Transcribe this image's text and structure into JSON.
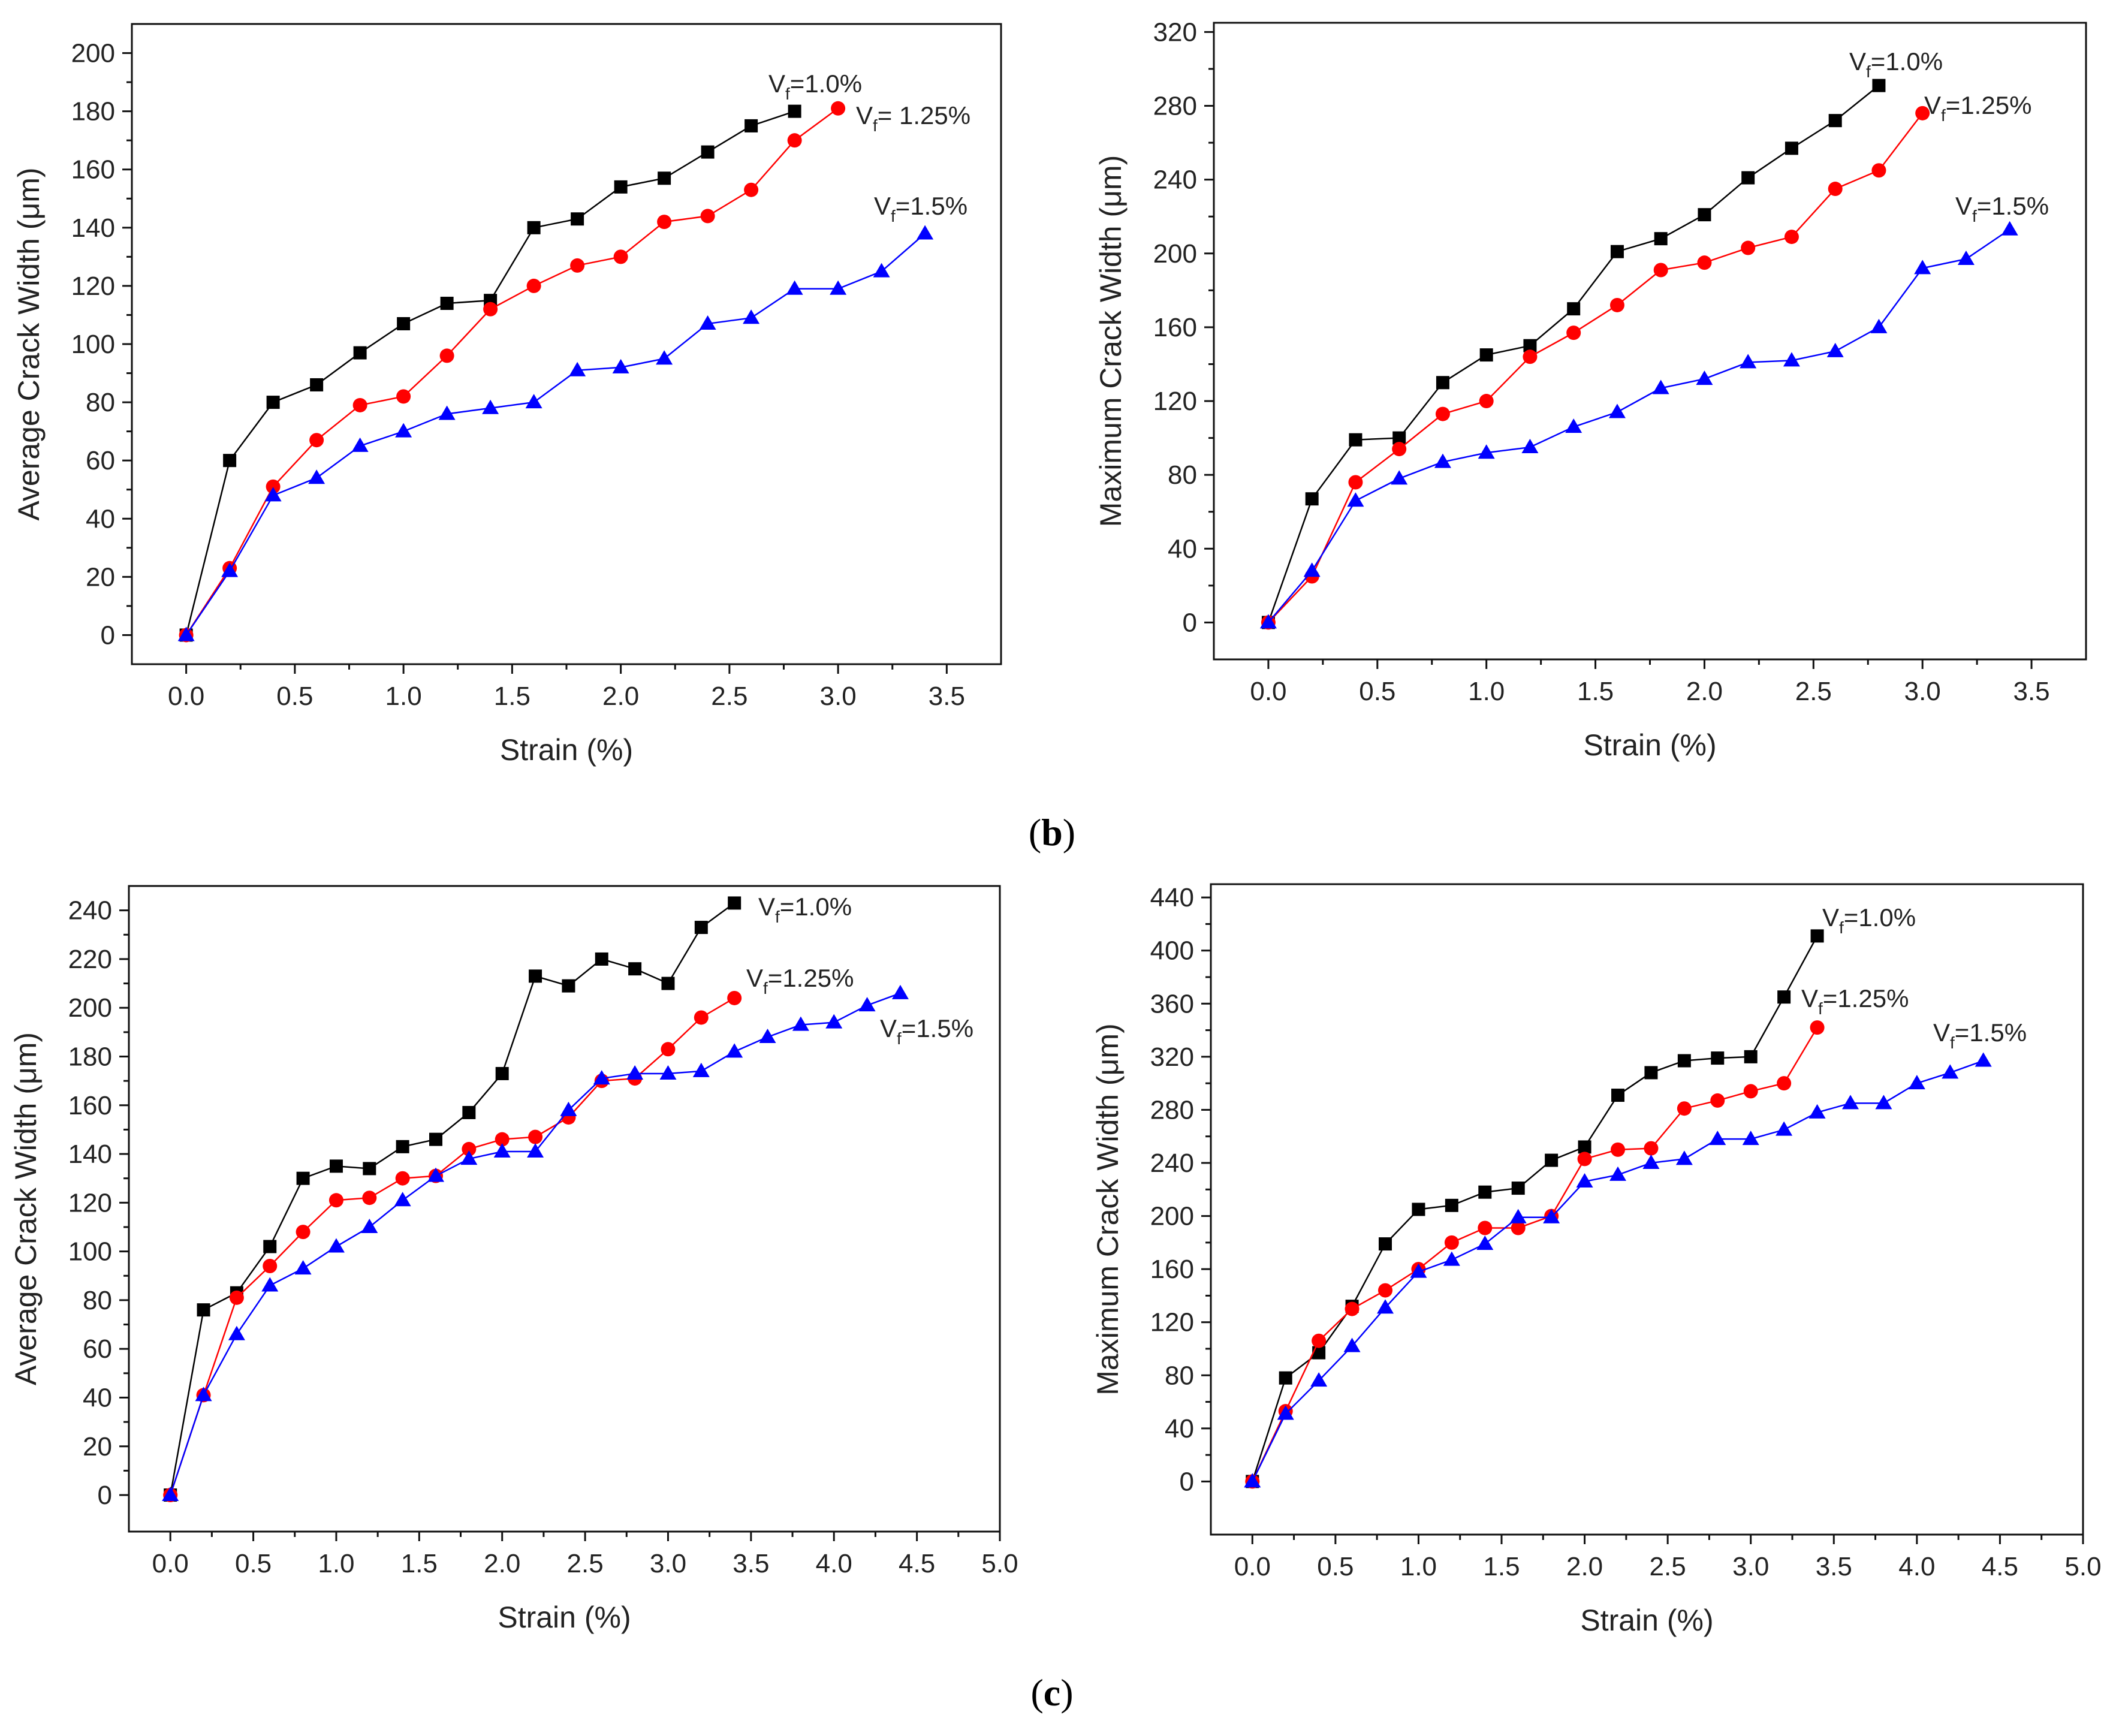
{
  "colors": {
    "black": "#000000",
    "red": "#ff0000",
    "blue": "#0000ff",
    "axis": "#111111"
  },
  "captions": {
    "b_open": "(",
    "b_letter": "b",
    "b_close": ")",
    "c_open": "(",
    "c_letter": "c",
    "c_close": ")"
  },
  "chart_data": [
    {
      "id": "b-left",
      "type": "line",
      "xlabel": "Strain (%)",
      "ylabel": "Average Crack Width (μm​)",
      "xlim": [
        -0.25,
        3.75
      ],
      "ylim": [
        -10,
        210
      ],
      "xticks": [
        0.0,
        0.5,
        1.0,
        1.5,
        2.0,
        2.5,
        3.0,
        3.5
      ],
      "xtick_labels": [
        "0.0",
        "0.5",
        "1.0",
        "1.5",
        "2.0",
        "2.5",
        "3.0",
        "3.5"
      ],
      "yticks": [
        0,
        20,
        40,
        60,
        80,
        100,
        120,
        140,
        160,
        180,
        200
      ],
      "ytick_labels": [
        "0",
        "20",
        "40",
        "60",
        "80",
        "100",
        "120",
        "140",
        "160",
        "180",
        "200"
      ],
      "series": [
        {
          "name": "Vf=1.0%",
          "label_main": "V",
          "label_sub": "f",
          "label_rest": "=1.0%",
          "color": "#000000",
          "marker": "square",
          "x": [
            0,
            0.2,
            0.4,
            0.6,
            0.8,
            1.0,
            1.2,
            1.4,
            1.6,
            1.8,
            2.0,
            2.2,
            2.4,
            2.6,
            2.8
          ],
          "y": [
            0,
            60,
            80,
            86,
            97,
            107,
            114,
            115,
            140,
            143,
            154,
            157,
            166,
            175,
            180
          ]
        },
        {
          "name": "Vf= 1.25%",
          "label_main": "V",
          "label_sub": "f",
          "label_rest": "= 1.25%",
          "color": "#ff0000",
          "marker": "circle",
          "x": [
            0,
            0.2,
            0.4,
            0.6,
            0.8,
            1.0,
            1.2,
            1.4,
            1.6,
            1.8,
            2.0,
            2.2,
            2.4,
            2.6,
            2.8,
            3.0
          ],
          "y": [
            0,
            23,
            51,
            67,
            79,
            82,
            96,
            112,
            120,
            127,
            130,
            142,
            144,
            153,
            170,
            181
          ]
        },
        {
          "name": "Vf=1.5%",
          "label_main": "V",
          "label_sub": "f",
          "label_rest": "=1.5%",
          "color": "#0000ff",
          "marker": "triangle",
          "x": [
            0,
            0.2,
            0.4,
            0.6,
            0.8,
            1.0,
            1.2,
            1.4,
            1.6,
            1.8,
            2.0,
            2.2,
            2.4,
            2.6,
            2.8,
            3.0,
            3.2,
            3.4
          ],
          "y": [
            0,
            22,
            48,
            54,
            65,
            70,
            76,
            78,
            80,
            91,
            92,
            95,
            107,
            109,
            119,
            119,
            125,
            138
          ]
        }
      ]
    },
    {
      "id": "b-right",
      "type": "line",
      "xlabel": "Strain (%)",
      "ylabel": "Maximum Crack Width (μm​)",
      "xlim": [
        -0.25,
        3.75
      ],
      "ylim": [
        -20,
        325
      ],
      "xticks": [
        0.0,
        0.5,
        1.0,
        1.5,
        2.0,
        2.5,
        3.0,
        3.5
      ],
      "xtick_labels": [
        "0.0",
        "0.5",
        "1.0",
        "1.5",
        "2.0",
        "2.5",
        "3.0",
        "3.5"
      ],
      "yticks": [
        0,
        40,
        80,
        120,
        160,
        200,
        240,
        280,
        320
      ],
      "ytick_labels": [
        "0",
        "40",
        "80",
        "120",
        "160",
        "200",
        "240",
        "280",
        "320"
      ],
      "series": [
        {
          "name": "Vf=1.0%",
          "label_main": "V",
          "label_sub": "f",
          "label_rest": "=1.0%",
          "color": "#000000",
          "marker": "square",
          "x": [
            0,
            0.2,
            0.4,
            0.6,
            0.8,
            1.0,
            1.2,
            1.4,
            1.6,
            1.8,
            2.0,
            2.2,
            2.4,
            2.6,
            2.8
          ],
          "y": [
            0,
            67,
            99,
            100,
            130,
            145,
            150,
            170,
            201,
            208,
            221,
            241,
            257,
            272,
            291
          ]
        },
        {
          "name": "Vf=1.25%",
          "label_main": "V",
          "label_sub": "f",
          "label_rest": "=1.25%",
          "color": "#ff0000",
          "marker": "circle",
          "x": [
            0,
            0.2,
            0.4,
            0.6,
            0.8,
            1.0,
            1.2,
            1.4,
            1.6,
            1.8,
            2.0,
            2.2,
            2.4,
            2.6,
            2.8,
            3.0
          ],
          "y": [
            0,
            25,
            76,
            94,
            113,
            120,
            144,
            157,
            172,
            191,
            195,
            203,
            209,
            235,
            245,
            276
          ]
        },
        {
          "name": "Vf=1.5%",
          "label_main": "V",
          "label_sub": "f",
          "label_rest": "=1.5%",
          "color": "#0000ff",
          "marker": "triangle",
          "x": [
            0,
            0.2,
            0.4,
            0.6,
            0.8,
            1.0,
            1.2,
            1.4,
            1.6,
            1.8,
            2.0,
            2.2,
            2.4,
            2.6,
            2.8,
            3.0,
            3.2,
            3.4
          ],
          "y": [
            0,
            28,
            66,
            78,
            87,
            92,
            95,
            106,
            114,
            127,
            132,
            141,
            142,
            147,
            160,
            192,
            197,
            213
          ]
        }
      ]
    },
    {
      "id": "c-left",
      "type": "line",
      "xlabel": "Strain (%)",
      "ylabel": "Average Crack Width (μm​)",
      "xlim": [
        -0.25,
        5.0
      ],
      "ylim": [
        -15,
        250
      ],
      "xticks": [
        0.0,
        0.5,
        1.0,
        1.5,
        2.0,
        2.5,
        3.0,
        3.5,
        4.0,
        4.5,
        5.0
      ],
      "xtick_labels": [
        "0.0",
        "0.5",
        "1.0",
        "1.5",
        "2.0",
        "2.5",
        "3.0",
        "3.5",
        "4.0",
        "4.5",
        "5.0"
      ],
      "yticks": [
        0,
        20,
        40,
        60,
        80,
        100,
        120,
        140,
        160,
        180,
        200,
        220,
        240
      ],
      "ytick_labels": [
        "0",
        "20",
        "40",
        "60",
        "80",
        "100",
        "120",
        "140",
        "160",
        "180",
        "200",
        "220",
        "240"
      ],
      "series": [
        {
          "name": "Vf=1.0%",
          "label_main": "V",
          "label_sub": "f",
          "label_rest": "=1.0%",
          "color": "#000000",
          "marker": "square",
          "x": [
            0,
            0.2,
            0.4,
            0.6,
            0.8,
            1.0,
            1.2,
            1.4,
            1.6,
            1.8,
            2.0,
            2.2,
            2.4,
            2.6,
            2.8,
            3.0,
            3.2,
            3.4
          ],
          "y": [
            0,
            76,
            83,
            102,
            130,
            135,
            134,
            143,
            146,
            157,
            173,
            213,
            209,
            220,
            216,
            210,
            233,
            243
          ]
        },
        {
          "name": "Vf=1.25%",
          "label_main": "V",
          "label_sub": "f",
          "label_rest": "=1.25%",
          "color": "#ff0000",
          "marker": "circle",
          "x": [
            0,
            0.2,
            0.4,
            0.6,
            0.8,
            1.0,
            1.2,
            1.4,
            1.6,
            1.8,
            2.0,
            2.2,
            2.4,
            2.6,
            2.8,
            3.0,
            3.2,
            3.4
          ],
          "y": [
            0,
            41,
            81,
            94,
            108,
            121,
            122,
            130,
            131,
            142,
            146,
            147,
            155,
            170,
            171,
            183,
            196,
            204
          ]
        },
        {
          "name": "Vf=1.5%",
          "label_main": "V",
          "label_sub": "f",
          "label_rest": "=1.5%",
          "color": "#0000ff",
          "marker": "triangle",
          "x": [
            0,
            0.2,
            0.4,
            0.6,
            0.8,
            1.0,
            1.2,
            1.4,
            1.6,
            1.8,
            2.0,
            2.2,
            2.4,
            2.6,
            2.8,
            3.0,
            3.2,
            3.4,
            3.6,
            3.8,
            4.0,
            4.2,
            4.4
          ],
          "y": [
            0,
            41,
            66,
            86,
            93,
            102,
            110,
            121,
            131,
            138,
            141,
            141,
            158,
            171,
            173,
            173,
            174,
            182,
            188,
            193,
            194,
            201,
            206
          ]
        }
      ]
    },
    {
      "id": "c-right",
      "type": "line",
      "xlabel": "Strain (%)",
      "ylabel": "Maximum Crack Width (μm​)",
      "xlim": [
        -0.25,
        5.0
      ],
      "ylim": [
        -40,
        450
      ],
      "xticks": [
        0.0,
        0.5,
        1.0,
        1.5,
        2.0,
        2.5,
        3.0,
        3.5,
        4.0,
        4.5,
        5.0
      ],
      "xtick_labels": [
        "0.0",
        "0.5",
        "1.0",
        "1.5",
        "2.0",
        "2.5",
        "3.0",
        "3.5",
        "4.0",
        "4.5",
        "5.0"
      ],
      "yticks": [
        0,
        40,
        80,
        120,
        160,
        200,
        240,
        280,
        320,
        360,
        400,
        440
      ],
      "ytick_labels": [
        "0",
        "40",
        "80",
        "120",
        "160",
        "200",
        "240",
        "280",
        "320",
        "360",
        "400",
        "440"
      ],
      "series": [
        {
          "name": "Vf=1.0%",
          "label_main": "V",
          "label_sub": "f",
          "label_rest": "=1.0%",
          "color": "#000000",
          "marker": "square",
          "x": [
            0,
            0.2,
            0.4,
            0.6,
            0.8,
            1.0,
            1.2,
            1.4,
            1.6,
            1.8,
            2.0,
            2.2,
            2.4,
            2.6,
            2.8,
            3.0,
            3.2,
            3.4
          ],
          "y": [
            0,
            78,
            97,
            132,
            179,
            205,
            208,
            218,
            221,
            242,
            252,
            291,
            308,
            317,
            319,
            320,
            365,
            411
          ]
        },
        {
          "name": "Vf=1.25%",
          "label_main": "V",
          "label_sub": "f",
          "label_rest": "=1.25%",
          "color": "#ff0000",
          "marker": "circle",
          "x": [
            0,
            0.2,
            0.4,
            0.6,
            0.8,
            1.0,
            1.2,
            1.4,
            1.6,
            1.8,
            2.0,
            2.2,
            2.4,
            2.6,
            2.8,
            3.0,
            3.2,
            3.4
          ],
          "y": [
            0,
            53,
            106,
            130,
            144,
            160,
            180,
            191,
            191,
            200,
            243,
            250,
            251,
            281,
            287,
            294,
            300,
            342
          ]
        },
        {
          "name": "Vf=1.5%",
          "label_main": "V",
          "label_sub": "f",
          "label_rest": "=1.5%",
          "color": "#0000ff",
          "marker": "triangle",
          "x": [
            0,
            0.2,
            0.4,
            0.6,
            0.8,
            1.0,
            1.2,
            1.4,
            1.6,
            1.8,
            2.0,
            2.2,
            2.4,
            2.6,
            2.8,
            3.0,
            3.2,
            3.4,
            3.6,
            3.8,
            4.0,
            4.2,
            4.4
          ],
          "y": [
            0,
            51,
            76,
            102,
            131,
            158,
            167,
            179,
            199,
            199,
            226,
            231,
            240,
            243,
            258,
            258,
            265,
            278,
            285,
            285,
            300,
            308,
            317
          ]
        }
      ]
    }
  ]
}
